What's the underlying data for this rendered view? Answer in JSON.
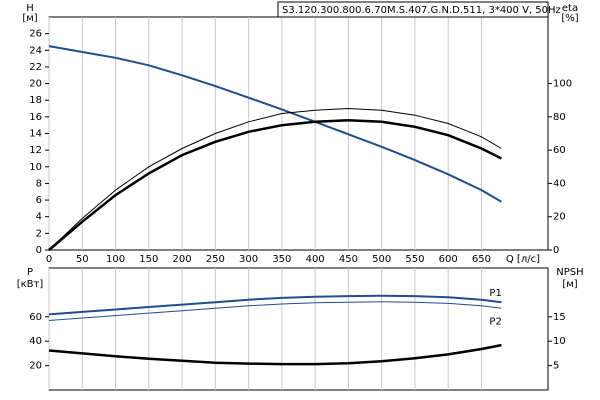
{
  "chart_data": [
    {
      "type": "line",
      "title": "S3.120.300.800.6.70M.S.407.G.N.D.511, 3*400 V, 50Hz",
      "y_label": "H",
      "y_unit": "[м]",
      "y2_label": "eta",
      "y2_unit": "[%]",
      "x_label": "Q [л/с]",
      "x": [
        0,
        50,
        100,
        150,
        200,
        250,
        300,
        350,
        400,
        450,
        500,
        550,
        600,
        650,
        680
      ],
      "xlim": [
        0,
        750
      ],
      "xticks": [
        0,
        50,
        100,
        150,
        200,
        250,
        300,
        350,
        400,
        450,
        500,
        550,
        600,
        650
      ],
      "ylim": [
        0,
        28
      ],
      "yticks": [
        0,
        2,
        4,
        6,
        8,
        10,
        12,
        14,
        16,
        18,
        20,
        22,
        24,
        26
      ],
      "y2lim": [
        0,
        140
      ],
      "y2ticks": [
        0,
        20,
        40,
        60,
        80,
        100
      ],
      "grid": "x",
      "series": [
        {
          "color": "#1f4e8c",
          "line_width": 2,
          "values": [
            24.5,
            23.8,
            23.1,
            22.2,
            21.0,
            19.7,
            18.3,
            16.9,
            15.4,
            13.9,
            12.4,
            10.8,
            9.1,
            7.2,
            5.8
          ]
        },
        {
          "color": "#000000",
          "line_width": 1,
          "axis": "y2",
          "values": [
            0,
            19,
            36,
            50,
            61,
            70,
            77,
            82,
            84,
            85,
            84,
            81,
            76,
            68,
            61
          ]
        },
        {
          "color": "#000000",
          "line_width": 2.5,
          "axis": "y2",
          "values": [
            0,
            17,
            33,
            46,
            57,
            65,
            71,
            75,
            77,
            78,
            77,
            74,
            69,
            61,
            55
          ]
        }
      ]
    },
    {
      "type": "line",
      "y_label": "P",
      "y_unit": "[кВт]",
      "y2_label": "NPSH",
      "y2_unit": "[м]",
      "x": [
        0,
        50,
        100,
        150,
        200,
        250,
        300,
        350,
        400,
        450,
        500,
        550,
        600,
        650,
        680
      ],
      "xlim": [
        0,
        750
      ],
      "xticks": [
        0,
        50,
        100,
        150,
        200,
        250,
        300,
        350,
        400,
        450,
        500,
        550,
        600,
        650
      ],
      "ylim": [
        0,
        100
      ],
      "yticks": [
        20,
        40,
        60
      ],
      "y2lim": [
        0,
        25
      ],
      "y2ticks": [
        5,
        10,
        15
      ],
      "grid": "x",
      "series": [
        {
          "name": "P1",
          "color": "#1f4e8c",
          "line_width": 2,
          "values": [
            62,
            64,
            66,
            68,
            70,
            72,
            74,
            75.5,
            76.5,
            77,
            77.3,
            77,
            76,
            74,
            72
          ]
        },
        {
          "name": "P2",
          "color": "#1f4e8c",
          "line_width": 1,
          "values": [
            57,
            59,
            61,
            63,
            65,
            67,
            69,
            70.5,
            71.5,
            72,
            72.3,
            72,
            71,
            69,
            67
          ]
        },
        {
          "color": "#000000",
          "line_width": 2.5,
          "axis": "y2",
          "values": [
            8.1,
            7.5,
            6.9,
            6.4,
            6.0,
            5.6,
            5.4,
            5.3,
            5.3,
            5.5,
            5.9,
            6.5,
            7.3,
            8.4,
            9.2
          ]
        }
      ]
    }
  ]
}
